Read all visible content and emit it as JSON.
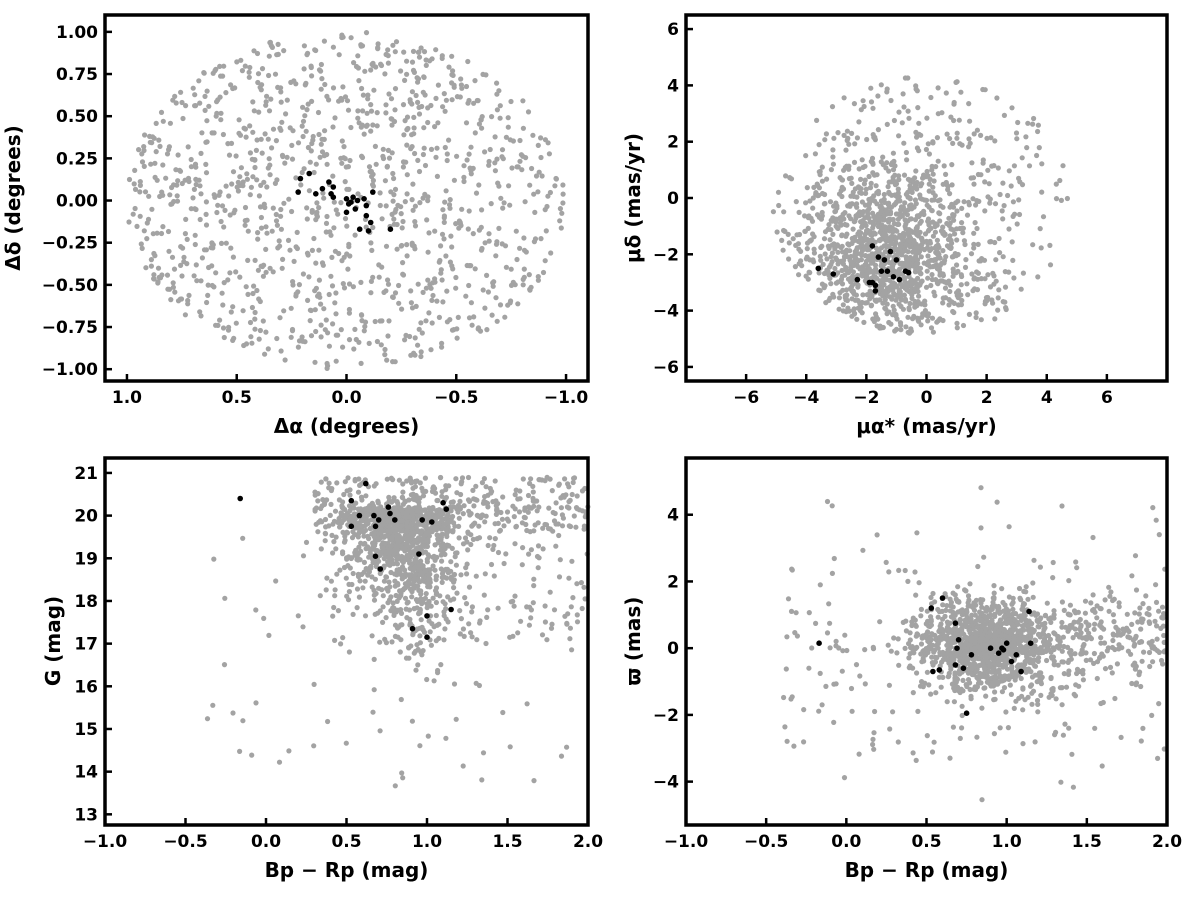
{
  "chart_data": [
    {
      "type": "scatter",
      "xlabel": "Δα (degrees)",
      "ylabel": "Δδ (degrees)",
      "xlim": [
        1.1,
        -1.1
      ],
      "ylim": [
        -1.07,
        1.1
      ],
      "x_inverted": true,
      "xticks": [
        1.0,
        0.5,
        0.0,
        -0.5,
        -1.0
      ],
      "xtick_labels": [
        "1.0",
        "0.5",
        "0.0",
        "−0.5",
        "−1.0"
      ],
      "yticks": [
        -1.0,
        -0.75,
        -0.5,
        -0.25,
        0.0,
        0.25,
        0.5,
        0.75,
        1.0
      ],
      "ytick_labels": [
        "−1.00",
        "−0.75",
        "−0.50",
        "−0.25",
        "0.00",
        "0.25",
        "0.50",
        "0.75",
        "1.00"
      ],
      "grid": false,
      "field_points": {
        "color": "#a3a3a3",
        "count": 1150,
        "distribution": "uniform-disk",
        "center": [
          0.0,
          0.0
        ],
        "radius": 1.0
      },
      "members": {
        "color": "#000000",
        "points": [
          [
            0.21,
            0.13
          ],
          [
            0.17,
            0.16
          ],
          [
            0.22,
            0.05
          ],
          [
            0.14,
            0.04
          ],
          [
            0.11,
            0.07
          ],
          [
            0.08,
            0.11
          ],
          [
            0.07,
            0.04
          ],
          [
            0.06,
            0.08
          ],
          [
            0.06,
            0.02
          ],
          [
            0.0,
            0.01
          ],
          [
            -0.02,
            -0.01
          ],
          [
            -0.05,
            0.0
          ],
          [
            -0.03,
            0.02
          ],
          [
            -0.08,
            0.01
          ],
          [
            -0.12,
            0.05
          ],
          [
            0.0,
            -0.07
          ],
          [
            -0.04,
            -0.05
          ],
          [
            -0.09,
            -0.09
          ],
          [
            -0.11,
            -0.13
          ],
          [
            -0.06,
            -0.17
          ],
          [
            -0.1,
            -0.18
          ],
          [
            -0.2,
            -0.17
          ],
          [
            -0.01,
            -0.02
          ],
          [
            -0.09,
            -0.03
          ]
        ]
      }
    },
    {
      "type": "scatter",
      "xlabel": "μα* (mas/yr)",
      "ylabel": "μδ (mas/yr)",
      "xlim": [
        -8.0,
        8.0
      ],
      "ylim": [
        -6.5,
        6.5
      ],
      "xticks": [
        -6,
        -4,
        -2,
        0,
        2,
        4,
        6
      ],
      "xtick_labels": [
        "−6",
        "−4",
        "−2",
        "0",
        "2",
        "4",
        "6"
      ],
      "yticks": [
        -6,
        -4,
        -2,
        0,
        2,
        4,
        6
      ],
      "ytick_labels": [
        "−6",
        "−4",
        "−2",
        "0",
        "2",
        "4",
        "6"
      ],
      "grid": false,
      "field_points": {
        "color": "#a3a3a3",
        "count": 1500,
        "distribution": "clustered",
        "center": [
          -1.2,
          -1.9
        ],
        "spread": [
          1.4,
          1.4
        ]
      },
      "members": {
        "color": "#000000",
        "points": [
          [
            -3.6,
            -2.5
          ],
          [
            -3.1,
            -2.7
          ],
          [
            -2.3,
            -2.9
          ],
          [
            -1.8,
            -1.7
          ],
          [
            -1.6,
            -2.1
          ],
          [
            -1.5,
            -2.6
          ],
          [
            -1.3,
            -2.6
          ],
          [
            -1.4,
            -2.2
          ],
          [
            -1.2,
            -1.9
          ],
          [
            -1.1,
            -2.8
          ],
          [
            -0.9,
            -2.9
          ],
          [
            -0.7,
            -2.6
          ],
          [
            -0.6,
            -2.65
          ],
          [
            -1.8,
            -3.0
          ],
          [
            -1.7,
            -3.1
          ],
          [
            -1.9,
            -3.0
          ],
          [
            -1.7,
            -3.3
          ],
          [
            -1.0,
            -2.2
          ]
        ]
      }
    },
    {
      "type": "scatter",
      "xlabel": "Bp − Rp (mag)",
      "ylabel": "G (mag)",
      "xlim": [
        -1.0,
        2.0
      ],
      "ylim": [
        12.75,
        21.35
      ],
      "xticks": [
        -1.0,
        -0.5,
        0.0,
        0.5,
        1.0,
        1.5,
        2.0
      ],
      "xtick_labels": [
        "−1.0",
        "−0.5",
        "0.0",
        "0.5",
        "1.0",
        "1.5",
        "2.0"
      ],
      "yticks": [
        13,
        14,
        15,
        16,
        17,
        18,
        19,
        20,
        21
      ],
      "ytick_labels": [
        "13",
        "14",
        "15",
        "16",
        "17",
        "18",
        "19",
        "20",
        "21"
      ],
      "grid": false,
      "field_points": {
        "color": "#a3a3a3",
        "count": 1600,
        "distribution": "color-magnitude"
      },
      "members": {
        "color": "#000000",
        "points": [
          [
            -0.16,
            20.4
          ],
          [
            0.53,
            20.35
          ],
          [
            0.62,
            20.75
          ],
          [
            0.58,
            20.0
          ],
          [
            0.67,
            20.0
          ],
          [
            0.7,
            19.9
          ],
          [
            0.76,
            20.2
          ],
          [
            0.77,
            20.05
          ],
          [
            0.8,
            19.9
          ],
          [
            0.68,
            19.75
          ],
          [
            0.53,
            19.75
          ],
          [
            0.68,
            19.05
          ],
          [
            0.71,
            18.75
          ],
          [
            0.97,
            19.9
          ],
          [
            1.03,
            19.85
          ],
          [
            1.1,
            20.3
          ],
          [
            1.12,
            20.15
          ],
          [
            0.95,
            19.1
          ],
          [
            1.15,
            17.8
          ],
          [
            1.0,
            17.65
          ],
          [
            0.91,
            17.35
          ],
          [
            1.0,
            17.15
          ]
        ]
      }
    },
    {
      "type": "scatter",
      "xlabel": "Bp − Rp (mag)",
      "ylabel": "ϖ (mas)",
      "xlim": [
        -1.0,
        2.0
      ],
      "ylim": [
        -5.3,
        5.7
      ],
      "xticks": [
        -1.0,
        -0.5,
        0.0,
        0.5,
        1.0,
        1.5,
        2.0
      ],
      "xtick_labels": [
        "−1.0",
        "−0.5",
        "0.0",
        "0.5",
        "1.0",
        "1.5",
        "2.0"
      ],
      "yticks": [
        -4,
        -2,
        0,
        2,
        4
      ],
      "ytick_labels": [
        "−4",
        "−2",
        "0",
        "2",
        "4"
      ],
      "grid": false,
      "field_points": {
        "color": "#a3a3a3",
        "count": 1600,
        "distribution": "color-parallax"
      },
      "members": {
        "color": "#000000",
        "points": [
          [
            -0.17,
            0.15
          ],
          [
            0.53,
            1.2
          ],
          [
            0.6,
            1.5
          ],
          [
            0.54,
            -0.7
          ],
          [
            0.58,
            -0.65
          ],
          [
            0.68,
            0.75
          ],
          [
            0.7,
            0.25
          ],
          [
            0.68,
            -0.5
          ],
          [
            0.73,
            -0.6
          ],
          [
            0.75,
            -1.95
          ],
          [
            0.78,
            -0.2
          ],
          [
            0.9,
            0.0
          ],
          [
            0.95,
            -0.15
          ],
          [
            0.98,
            -0.05
          ],
          [
            1.0,
            0.15
          ],
          [
            1.03,
            -0.4
          ],
          [
            1.06,
            -0.2
          ],
          [
            1.09,
            -0.7
          ],
          [
            1.14,
            1.1
          ],
          [
            1.15,
            0.15
          ],
          [
            0.97,
            0.0
          ],
          [
            0.69,
            0.0
          ]
        ]
      }
    }
  ]
}
